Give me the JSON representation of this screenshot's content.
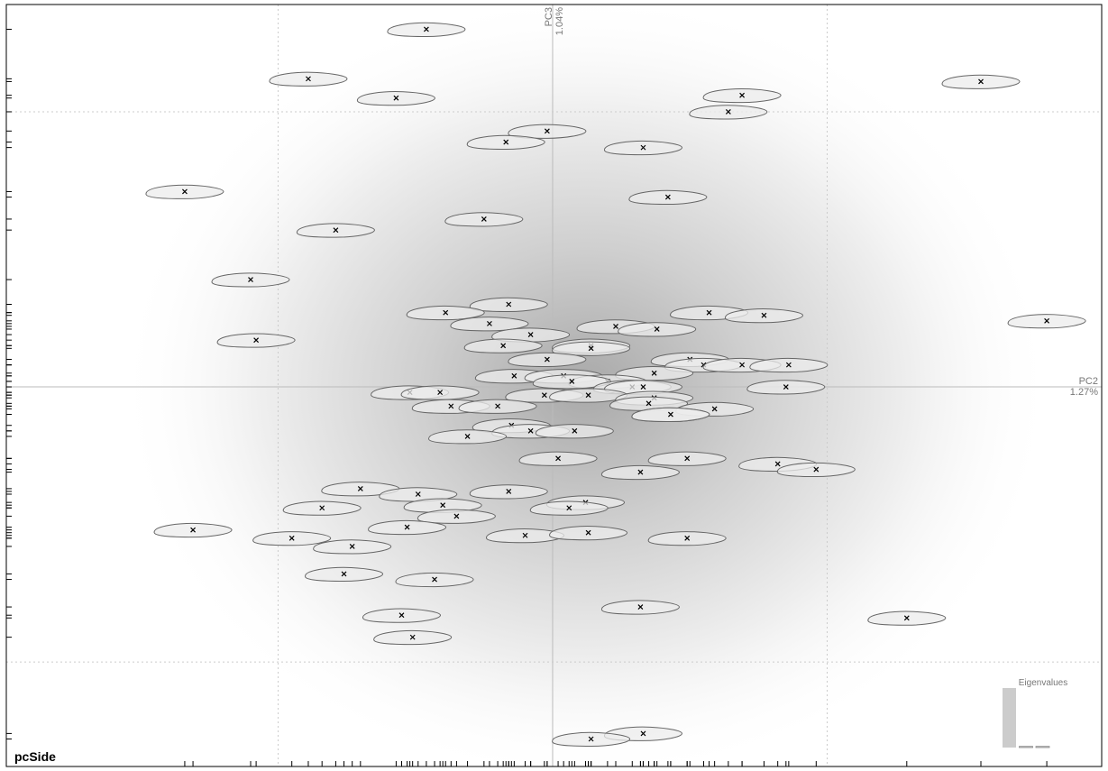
{
  "chart_data": [
    {
      "type": "scatter",
      "title": "pcSide",
      "x_label": "PC2",
      "x_variance": "1.27%",
      "y_label": "PC3",
      "y_variance": "1.04%",
      "xlim": [
        -1.99,
        2.0
      ],
      "ylim": [
        -1.38,
        1.39
      ],
      "xticks": [
        -1,
        0,
        1
      ],
      "yticks": [
        -1,
        0,
        1
      ],
      "grid": true,
      "x": [
        -0.46,
        -0.89,
        -0.57,
        1.56,
        0.69,
        0.64,
        -0.02,
        -0.17,
        0.33,
        -1.34,
        0.42,
        -0.25,
        -0.79,
        -1.1,
        -0.16,
        0.57,
        0.77,
        -0.39,
        -0.23,
        0.23,
        0.38,
        1.8,
        -0.08,
        -0.18,
        -1.08,
        0.14,
        0.14,
        -0.02,
        0.5,
        0.55,
        0.69,
        0.86,
        -0.14,
        0.04,
        0.37,
        0.2,
        0.07,
        0.29,
        0.33,
        0.85,
        -0.52,
        -0.41,
        -0.03,
        0.13,
        0.37,
        0.35,
        -0.37,
        -0.2,
        0.59,
        0.43,
        0.43,
        -0.15,
        -0.08,
        0.08,
        -0.31,
        0.02,
        0.49,
        0.32,
        0.82,
        0.96,
        -0.7,
        -0.16,
        -0.49,
        -0.84,
        -0.4,
        0.12,
        0.06,
        -0.35,
        -1.31,
        -0.53,
        -0.95,
        -0.1,
        0.13,
        0.49,
        -0.73,
        -0.76,
        -0.43,
        0.32,
        -0.55,
        1.29,
        -0.51,
        0.33,
        0.14
      ],
      "values": [
        1.3,
        1.12,
        1.05,
        1.11,
        1.06,
        1.0,
        0.93,
        0.89,
        0.87,
        0.71,
        0.69,
        0.61,
        0.57,
        0.39,
        0.3,
        0.27,
        0.26,
        0.27,
        0.23,
        0.22,
        0.21,
        0.24,
        0.19,
        0.15,
        0.17,
        0.15,
        0.14,
        0.1,
        0.1,
        0.08,
        0.08,
        0.08,
        0.04,
        0.04,
        0.05,
        0.02,
        0.02,
        0.0,
        0.0,
        0.0,
        -0.02,
        -0.02,
        -0.03,
        -0.03,
        -0.04,
        -0.06,
        -0.07,
        -0.07,
        -0.08,
        -0.1,
        -0.1,
        -0.14,
        -0.16,
        -0.16,
        -0.18,
        -0.26,
        -0.26,
        -0.31,
        -0.28,
        -0.3,
        -0.37,
        -0.38,
        -0.39,
        -0.44,
        -0.43,
        -0.42,
        -0.44,
        -0.47,
        -0.52,
        -0.51,
        -0.55,
        -0.54,
        -0.53,
        -0.55,
        -0.58,
        -0.68,
        -0.7,
        -0.8,
        -0.83,
        -0.84,
        -0.91,
        -1.26,
        -1.28
      ],
      "color": "#000000"
    },
    {
      "type": "bar",
      "title": "Eigenvalues",
      "values": [
        1,
        0.02,
        0.02
      ],
      "ylim": [
        0,
        1
      ],
      "color": "#cccccc"
    }
  ]
}
